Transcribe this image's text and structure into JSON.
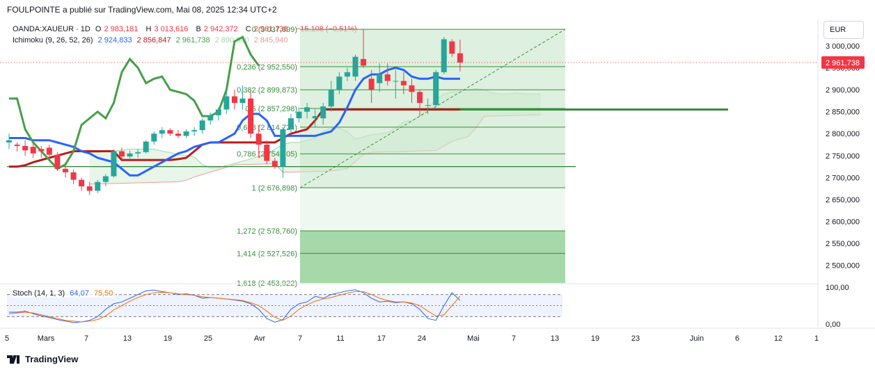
{
  "header": {
    "publisher": "FOULPOINTE a publié sur TradingView.com, Mai 08, 2025 12:34 UTC+2"
  },
  "legend": {
    "symbol": "OANDA:XAUEUR · 1D",
    "o_label": "O",
    "o_value": "2 983,181",
    "h_label": "H",
    "h_value": "3 013,616",
    "b_label": "B",
    "b_value": "2 942,372",
    "c_label": "C",
    "c_value": "2 961,738",
    "change": "−15,108 (−0,51%)"
  },
  "ichimoku_legend": {
    "name": "Ichimoku (9, 26, 52, 26)",
    "v1": "2 924,833",
    "v2": "2 856,847",
    "v3": "2 961,738",
    "v4": "2 890,840",
    "v5": "2 845,940"
  },
  "stoch_legend": {
    "name": "Stoch (14, 1, 3)",
    "k": "64,07",
    "d": "75,50"
  },
  "currency": "EUR",
  "brand": "TradingView",
  "colors": {
    "up": "#26a69a",
    "down": "#f23645",
    "tenkan": "#2962ff",
    "kijun": "#b71c1c",
    "chikou": "#43a047",
    "fib": "#388e3c",
    "cloud": "#a5d6a7"
  },
  "chart_data": {
    "type": "candlestick",
    "title": "OANDA:XAUEUR · 1D",
    "ylim": [
      2460,
      3060
    ],
    "y_ticks": [
      "3 000,000",
      "2 950,000",
      "2 900,000",
      "2 850,000",
      "2 800,000",
      "2 750,000",
      "2 700,000",
      "2 650,000",
      "2 600,000",
      "2 550,000",
      "2 500,000"
    ],
    "y_tick_values": [
      3000,
      2950,
      2900,
      2850,
      2800,
      2750,
      2700,
      2650,
      2600,
      2550,
      2500
    ],
    "x_ticks": [
      "5",
      "Mars",
      "7",
      "13",
      "19",
      "25",
      "Avr",
      "7",
      "11",
      "17",
      "24",
      "Mai",
      "7",
      "13",
      "19",
      "23",
      "Juin",
      "6",
      "12",
      "1"
    ],
    "last_price": "2 961,738",
    "candles": [
      {
        "o": 2780,
        "h": 2800,
        "l": 2765,
        "c": 2785
      },
      {
        "o": 2775,
        "h": 2780,
        "l": 2760,
        "c": 2772
      },
      {
        "o": 2772,
        "h": 2785,
        "l": 2750,
        "c": 2762
      },
      {
        "o": 2770,
        "h": 2778,
        "l": 2745,
        "c": 2755
      },
      {
        "o": 2765,
        "h": 2772,
        "l": 2745,
        "c": 2760
      },
      {
        "o": 2768,
        "h": 2775,
        "l": 2745,
        "c": 2752
      },
      {
        "o": 2752,
        "h": 2758,
        "l": 2715,
        "c": 2720
      },
      {
        "o": 2720,
        "h": 2730,
        "l": 2700,
        "c": 2712
      },
      {
        "o": 2712,
        "h": 2718,
        "l": 2685,
        "c": 2695
      },
      {
        "o": 2695,
        "h": 2700,
        "l": 2670,
        "c": 2680
      },
      {
        "o": 2680,
        "h": 2690,
        "l": 2660,
        "c": 2670
      },
      {
        "o": 2670,
        "h": 2695,
        "l": 2665,
        "c": 2690
      },
      {
        "o": 2690,
        "h": 2708,
        "l": 2680,
        "c": 2703
      },
      {
        "o": 2703,
        "h": 2765,
        "l": 2700,
        "c": 2760
      },
      {
        "o": 2760,
        "h": 2768,
        "l": 2740,
        "c": 2748
      },
      {
        "o": 2748,
        "h": 2762,
        "l": 2740,
        "c": 2755
      },
      {
        "o": 2755,
        "h": 2765,
        "l": 2745,
        "c": 2758
      },
      {
        "o": 2758,
        "h": 2785,
        "l": 2755,
        "c": 2782
      },
      {
        "o": 2782,
        "h": 2805,
        "l": 2775,
        "c": 2800
      },
      {
        "o": 2800,
        "h": 2815,
        "l": 2790,
        "c": 2808
      },
      {
        "o": 2808,
        "h": 2812,
        "l": 2795,
        "c": 2800
      },
      {
        "o": 2800,
        "h": 2808,
        "l": 2790,
        "c": 2795
      },
      {
        "o": 2795,
        "h": 2810,
        "l": 2790,
        "c": 2805
      },
      {
        "o": 2805,
        "h": 2815,
        "l": 2795,
        "c": 2808
      },
      {
        "o": 2808,
        "h": 2835,
        "l": 2800,
        "c": 2830
      },
      {
        "o": 2830,
        "h": 2848,
        "l": 2820,
        "c": 2842
      },
      {
        "o": 2842,
        "h": 2860,
        "l": 2830,
        "c": 2855
      },
      {
        "o": 2855,
        "h": 2895,
        "l": 2845,
        "c": 2885
      },
      {
        "o": 2885,
        "h": 2900,
        "l": 2855,
        "c": 2870
      },
      {
        "o": 2870,
        "h": 2910,
        "l": 2855,
        "c": 2880
      },
      {
        "o": 2880,
        "h": 2895,
        "l": 2790,
        "c": 2800
      },
      {
        "o": 2800,
        "h": 2820,
        "l": 2745,
        "c": 2775
      },
      {
        "o": 2775,
        "h": 2785,
        "l": 2730,
        "c": 2738
      },
      {
        "o": 2738,
        "h": 2745,
        "l": 2720,
        "c": 2725
      },
      {
        "o": 2725,
        "h": 2815,
        "l": 2700,
        "c": 2810
      },
      {
        "o": 2810,
        "h": 2845,
        "l": 2800,
        "c": 2835
      },
      {
        "o": 2835,
        "h": 2860,
        "l": 2825,
        "c": 2850
      },
      {
        "o": 2850,
        "h": 2870,
        "l": 2835,
        "c": 2860
      },
      {
        "o": 2835,
        "h": 2855,
        "l": 2815,
        "c": 2840
      },
      {
        "o": 2835,
        "h": 2870,
        "l": 2820,
        "c": 2862
      },
      {
        "o": 2862,
        "h": 2920,
        "l": 2850,
        "c": 2900
      },
      {
        "o": 2900,
        "h": 2940,
        "l": 2890,
        "c": 2930
      },
      {
        "o": 2930,
        "h": 2950,
        "l": 2920,
        "c": 2940
      },
      {
        "o": 2930,
        "h": 2980,
        "l": 2920,
        "c": 2975
      },
      {
        "o": 2970,
        "h": 3038,
        "l": 2950,
        "c": 2955
      },
      {
        "o": 2925,
        "h": 2945,
        "l": 2870,
        "c": 2900
      },
      {
        "o": 2915,
        "h": 2960,
        "l": 2895,
        "c": 2935
      },
      {
        "o": 2935,
        "h": 2960,
        "l": 2910,
        "c": 2920
      },
      {
        "o": 2920,
        "h": 2945,
        "l": 2880,
        "c": 2920
      },
      {
        "o": 2920,
        "h": 2940,
        "l": 2890,
        "c": 2910
      },
      {
        "o": 2910,
        "h": 2925,
        "l": 2870,
        "c": 2895
      },
      {
        "o": 2895,
        "h": 2900,
        "l": 2840,
        "c": 2870
      },
      {
        "o": 2865,
        "h": 2880,
        "l": 2845,
        "c": 2865
      },
      {
        "o": 2865,
        "h": 2945,
        "l": 2860,
        "c": 2940
      },
      {
        "o": 2940,
        "h": 3020,
        "l": 2935,
        "c": 3015
      },
      {
        "o": 3010,
        "h": 3015,
        "l": 2975,
        "c": 2982
      },
      {
        "o": 2983,
        "h": 3014,
        "l": 2942,
        "c": 2962
      }
    ],
    "fibonacci": [
      {
        "label": "0 (3 037,699)",
        "value": 3037.699
      },
      {
        "label": "0,236 (2 952,550)",
        "value": 2952.55
      },
      {
        "label": "0,382 (2 899,873)",
        "value": 2899.873
      },
      {
        "label": "0,5 (2 857,298)",
        "value": 2857.298
      },
      {
        "label": "0,618 (2 814,724)",
        "value": 2814.724
      },
      {
        "label": "0,786 (2 754,105)",
        "value": 2754.105
      },
      {
        "label": "1 (2 676,898)",
        "value": 2676.898
      },
      {
        "label": "1,272 (2 578,760)",
        "value": 2578.76
      },
      {
        "label": "1,414 (2 527,526)",
        "value": 2527.526
      },
      {
        "label": "1,618 (2 453,922)",
        "value": 2453.922
      }
    ],
    "horizontal_line": 2725,
    "ichimoku": {
      "tenkan": [
        2790,
        2790,
        2790,
        2785,
        2785,
        2785,
        2780,
        2775,
        2770,
        2760,
        2755,
        2745,
        2740,
        2735,
        2720,
        2705,
        2705,
        2715,
        2725,
        2735,
        2745,
        2755,
        2760,
        2770,
        2775,
        2780,
        2780,
        2790,
        2800,
        2830,
        2845,
        2845,
        2830,
        2795,
        2795,
        2795,
        2795,
        2795,
        2795,
        2800,
        2805,
        2825,
        2860,
        2900,
        2925,
        2935,
        2935,
        2945,
        2950,
        2945,
        2930,
        2925,
        2925,
        2930,
        2925,
        2925,
        2925
      ],
      "kijun": [
        2725,
        2725,
        2728,
        2735,
        2740,
        2745,
        2750,
        2755,
        2760,
        2760,
        2760,
        2760,
        2760,
        2760,
        2740,
        2740,
        2740,
        2740,
        2740,
        2740,
        2740,
        2742,
        2745,
        2760,
        2775,
        2780,
        2780,
        2780,
        2780,
        2780,
        2780,
        2780,
        2780,
        2780,
        2790,
        2800,
        2805,
        2810,
        2830,
        2855,
        2855,
        2855,
        2855,
        2855,
        2855,
        2855,
        2855,
        2855,
        2855,
        2855,
        2855,
        2855,
        2855,
        2855,
        2855,
        2855,
        2855
      ],
      "chikou": [
        2880,
        2880,
        2810,
        2780,
        2760,
        2740,
        2720,
        2730,
        2760,
        2820,
        2835,
        2850,
        2835,
        2870,
        2940,
        2970,
        2950,
        2915,
        2925,
        2930,
        2900,
        2895,
        2890,
        2875,
        2840,
        2840,
        2850,
        2900,
        3010,
        3020,
        2980,
        2955
      ]
    },
    "stochastic": {
      "ylim": [
        0,
        100
      ],
      "y_ticks": [
        "100,00",
        "0,00"
      ],
      "k": [
        32,
        32,
        35,
        28,
        22,
        18,
        12,
        8,
        4,
        6,
        10,
        20,
        40,
        55,
        60,
        70,
        80,
        90,
        92,
        88,
        85,
        80,
        82,
        78,
        70,
        72,
        70,
        68,
        65,
        62,
        55,
        40,
        15,
        5,
        12,
        40,
        55,
        60,
        75,
        70,
        80,
        85,
        90,
        93,
        85,
        70,
        60,
        62,
        58,
        60,
        55,
        40,
        15,
        10,
        50,
        85,
        64
      ],
      "d": [
        28,
        30,
        32,
        30,
        25,
        20,
        15,
        10,
        8,
        6,
        8,
        12,
        22,
        38,
        50,
        62,
        72,
        80,
        85,
        86,
        85,
        82,
        80,
        78,
        74,
        72,
        70,
        68,
        66,
        64,
        58,
        50,
        35,
        18,
        10,
        22,
        40,
        52,
        62,
        68,
        72,
        78,
        84,
        88,
        88,
        80,
        70,
        64,
        60,
        60,
        57,
        50,
        35,
        22,
        25,
        50,
        75.5
      ]
    }
  }
}
